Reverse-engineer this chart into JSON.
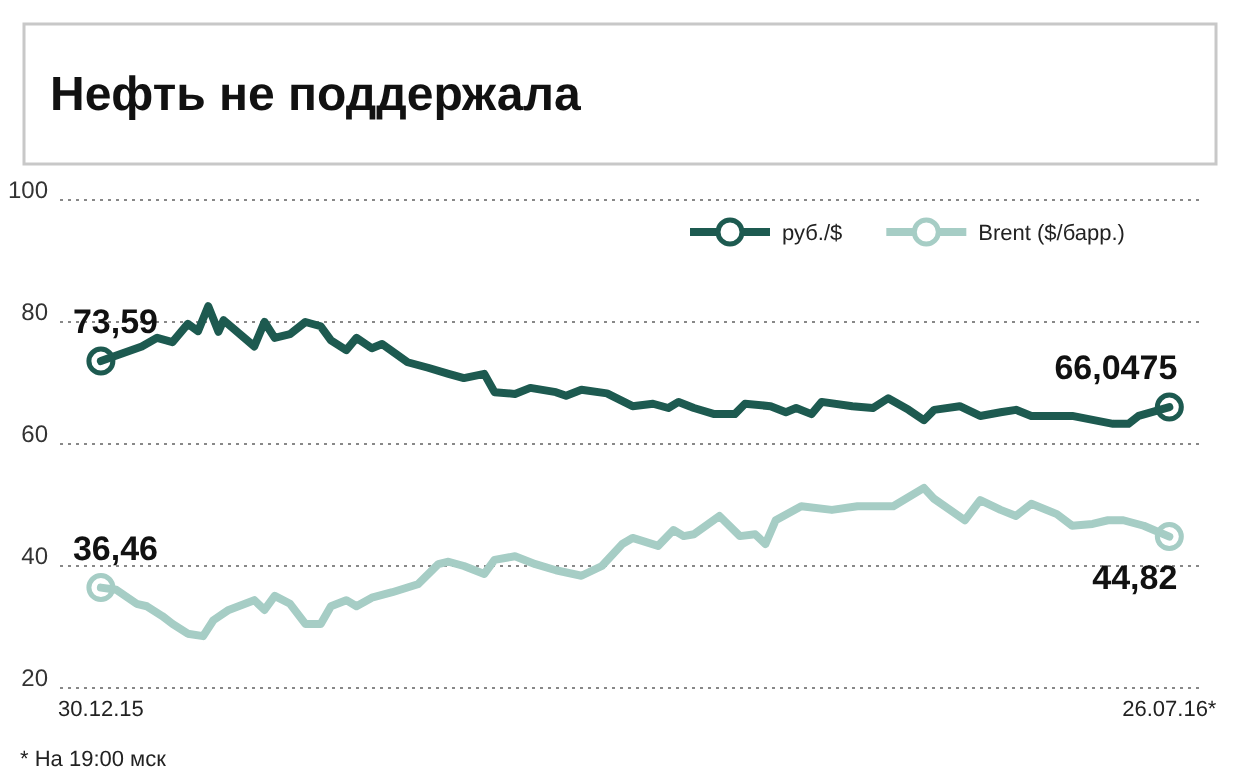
{
  "chart_data": {
    "type": "line",
    "title": "Нефть не поддержала",
    "xlim": [
      "2015-12-22",
      "2016-08-01"
    ],
    "ylim": [
      20,
      100
    ],
    "xticks": [
      {
        "value": "2015-12-30",
        "label": "30.12.15"
      },
      {
        "value": "2016-07-26",
        "label": "26.07.16*"
      }
    ],
    "yticks": [
      20,
      40,
      60,
      80,
      100
    ],
    "grid": "y",
    "legend": "top right",
    "series": [
      {
        "name": "руб./$",
        "color": "#1d5a50",
        "x": [
          "2015-12-30",
          "2016-01-03",
          "2016-01-07",
          "2016-01-10",
          "2016-01-13",
          "2016-01-16",
          "2016-01-18",
          "2016-01-20",
          "2016-01-22",
          "2016-01-23",
          "2016-01-29",
          "2016-01-31",
          "2016-02-02",
          "2016-02-05",
          "2016-02-08",
          "2016-02-11",
          "2016-02-13",
          "2016-02-16",
          "2016-02-18",
          "2016-02-21",
          "2016-02-23",
          "2016-02-28",
          "2016-03-03",
          "2016-03-07",
          "2016-03-10",
          "2016-03-14",
          "2016-03-16",
          "2016-03-20",
          "2016-03-23",
          "2016-03-28",
          "2016-03-30",
          "2016-04-02",
          "2016-04-07",
          "2016-04-12",
          "2016-04-16",
          "2016-04-19",
          "2016-04-21",
          "2016-04-24",
          "2016-04-28",
          "2016-05-02",
          "2016-05-04",
          "2016-05-09",
          "2016-05-12",
          "2016-05-14",
          "2016-05-17",
          "2016-05-19",
          "2016-05-25",
          "2016-05-29",
          "2016-06-01",
          "2016-06-05",
          "2016-06-08",
          "2016-06-10",
          "2016-06-15",
          "2016-06-19",
          "2016-06-23",
          "2016-06-26",
          "2016-06-29",
          "2016-07-07",
          "2016-07-15",
          "2016-07-18",
          "2016-07-20",
          "2016-07-26"
        ],
        "values": [
          73.59,
          74.8,
          76,
          77.4,
          76.7,
          79.7,
          78.5,
          82.6,
          78.4,
          80.3,
          76,
          80,
          77.4,
          78,
          80,
          79.3,
          77,
          75.4,
          77.4,
          75.7,
          76.4,
          73.4,
          72.5,
          71.5,
          70.8,
          71.5,
          68.5,
          68.2,
          69.2,
          68.5,
          67.9,
          68.9,
          68.3,
          66.2,
          66.6,
          65.9,
          66.9,
          65.9,
          64.9,
          64.9,
          66.6,
          66.2,
          65.2,
          65.9,
          64.9,
          66.9,
          66.2,
          65.9,
          67.5,
          65.6,
          63.9,
          65.6,
          66.2,
          64.6,
          65.2,
          65.6,
          64.6,
          64.6,
          63.3,
          63.3,
          64.6,
          66.0475
        ]
      },
      {
        "name": "Brent ($/барр.)",
        "color": "#a6cdc5",
        "x": [
          "2015-12-30",
          "2016-01-02",
          "2016-01-06",
          "2016-01-08",
          "2016-01-11",
          "2016-01-13",
          "2016-01-16",
          "2016-01-19",
          "2016-01-21",
          "2016-01-24",
          "2016-01-29",
          "2016-01-31",
          "2016-02-02",
          "2016-02-05",
          "2016-02-08",
          "2016-02-11",
          "2016-02-13",
          "2016-02-16",
          "2016-02-18",
          "2016-02-21",
          "2016-02-25",
          "2016-03-01",
          "2016-03-05",
          "2016-03-07",
          "2016-03-10",
          "2016-03-14",
          "2016-03-16",
          "2016-03-20",
          "2016-03-24",
          "2016-03-28",
          "2016-04-02",
          "2016-04-06",
          "2016-04-10",
          "2016-04-12",
          "2016-04-17",
          "2016-04-20",
          "2016-04-22",
          "2016-04-24",
          "2016-04-29",
          "2016-05-03",
          "2016-05-06",
          "2016-05-08",
          "2016-05-10",
          "2016-05-15",
          "2016-05-21",
          "2016-05-26",
          "2016-06-02",
          "2016-06-08",
          "2016-06-10",
          "2016-06-16",
          "2016-06-19",
          "2016-06-23",
          "2016-06-26",
          "2016-06-29",
          "2016-07-04",
          "2016-07-07",
          "2016-07-11",
          "2016-07-14",
          "2016-07-17",
          "2016-07-21",
          "2016-07-26"
        ],
        "values": [
          36.46,
          36.1,
          33.8,
          33.4,
          31.8,
          30.5,
          28.9,
          28.5,
          31.1,
          32.8,
          34.4,
          32.8,
          35.1,
          33.8,
          30.5,
          30.5,
          33.4,
          34.4,
          33.4,
          34.8,
          35.7,
          37,
          40.3,
          40.7,
          40,
          38.7,
          41,
          41.6,
          40.3,
          39.3,
          38.4,
          40,
          43.6,
          44.6,
          43.3,
          45.9,
          44.9,
          45.2,
          48.2,
          44.9,
          45.2,
          43.6,
          47.5,
          49.8,
          49.2,
          49.8,
          49.8,
          52.8,
          51,
          47.5,
          50.8,
          49.2,
          48.2,
          50.2,
          48.5,
          46.6,
          46.9,
          47.5,
          47.5,
          46.6,
          44.82
        ]
      }
    ],
    "annotations": [
      {
        "text": "73,59",
        "x": "2015-12-30",
        "y": 73.59
      },
      {
        "text": "36,46",
        "x": "2015-12-30",
        "y": 36.46
      },
      {
        "text": "66,0475",
        "x": "2016-07-26",
        "y": 66.0475
      },
      {
        "text": "44,82",
        "x": "2016-07-26",
        "y": 44.82
      },
      "* На 19:00 мск"
    ]
  }
}
